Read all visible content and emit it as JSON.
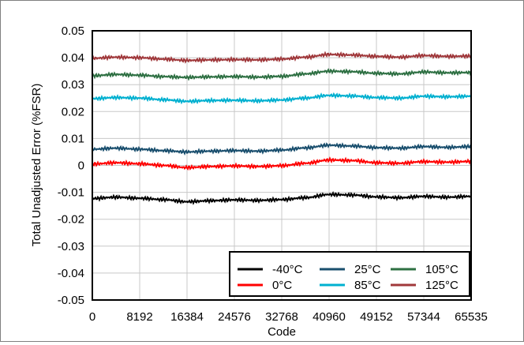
{
  "chart_data": {
    "type": "line",
    "title": "",
    "xlabel": "Code",
    "ylabel": "Total Unadjusted Error (%FSR)",
    "xlim": [
      0,
      65535
    ],
    "ylim": [
      -0.05,
      0.05
    ],
    "grid": true,
    "legend_position": "bottom-right",
    "x_ticks": [
      0,
      8192,
      16384,
      24576,
      32768,
      40960,
      49152,
      57344,
      65535
    ],
    "x_tick_labels": [
      "0",
      "8192",
      "16384",
      "24576",
      "32768",
      "40960",
      "49152",
      "57344",
      "65535"
    ],
    "y_ticks": [
      -0.05,
      -0.04,
      -0.03,
      -0.02,
      -0.01,
      0,
      0.01,
      0.02,
      0.03,
      0.04,
      0.05
    ],
    "y_tick_labels": [
      "-0.05",
      "-0.04",
      "-0.03",
      "-0.02",
      "-0.01",
      "0",
      "0.01",
      "0.02",
      "0.03",
      "0.04",
      "0.05"
    ],
    "x": [
      0,
      4096,
      8192,
      12288,
      16384,
      20480,
      24576,
      28672,
      32768,
      36864,
      40960,
      45056,
      49152,
      53248,
      57344,
      61440,
      65535
    ],
    "series": [
      {
        "name": "-40°C",
        "color": "#000000",
        "values": [
          -0.0123,
          -0.0118,
          -0.0122,
          -0.0127,
          -0.0135,
          -0.0131,
          -0.0128,
          -0.013,
          -0.0127,
          -0.012,
          -0.0108,
          -0.011,
          -0.0117,
          -0.012,
          -0.0115,
          -0.0118,
          -0.0115
        ]
      },
      {
        "name": "0°C",
        "color": "#ff0000",
        "values": [
          0.0005,
          0.001,
          0.0006,
          0.0,
          -0.0008,
          -0.0004,
          -0.0002,
          -0.0004,
          -0.0001,
          0.0008,
          0.002,
          0.0018,
          0.001,
          0.0008,
          0.0014,
          0.0012,
          0.0015
        ]
      },
      {
        "name": "25°C",
        "color": "#1a4f6e",
        "values": [
          0.006,
          0.0064,
          0.006,
          0.0055,
          0.005,
          0.0053,
          0.0055,
          0.0053,
          0.0057,
          0.0065,
          0.0075,
          0.0072,
          0.0066,
          0.0064,
          0.007,
          0.0067,
          0.007
        ]
      },
      {
        "name": "85°C",
        "color": "#00b0d0",
        "values": [
          0.0248,
          0.0252,
          0.025,
          0.0244,
          0.0238,
          0.0241,
          0.0242,
          0.024,
          0.0243,
          0.025,
          0.026,
          0.0258,
          0.0252,
          0.025,
          0.0257,
          0.0255,
          0.0257
        ]
      },
      {
        "name": "105°C",
        "color": "#2e7043",
        "values": [
          0.0333,
          0.0338,
          0.0335,
          0.033,
          0.0327,
          0.0329,
          0.033,
          0.0328,
          0.0331,
          0.034,
          0.035,
          0.0348,
          0.0342,
          0.034,
          0.0347,
          0.0344,
          0.0345
        ]
      },
      {
        "name": "125°C",
        "color": "#a0383b",
        "values": [
          0.0398,
          0.0402,
          0.04,
          0.0395,
          0.039,
          0.0392,
          0.0393,
          0.0392,
          0.0395,
          0.0402,
          0.0412,
          0.041,
          0.0405,
          0.0402,
          0.0408,
          0.0405,
          0.0406
        ]
      }
    ]
  }
}
